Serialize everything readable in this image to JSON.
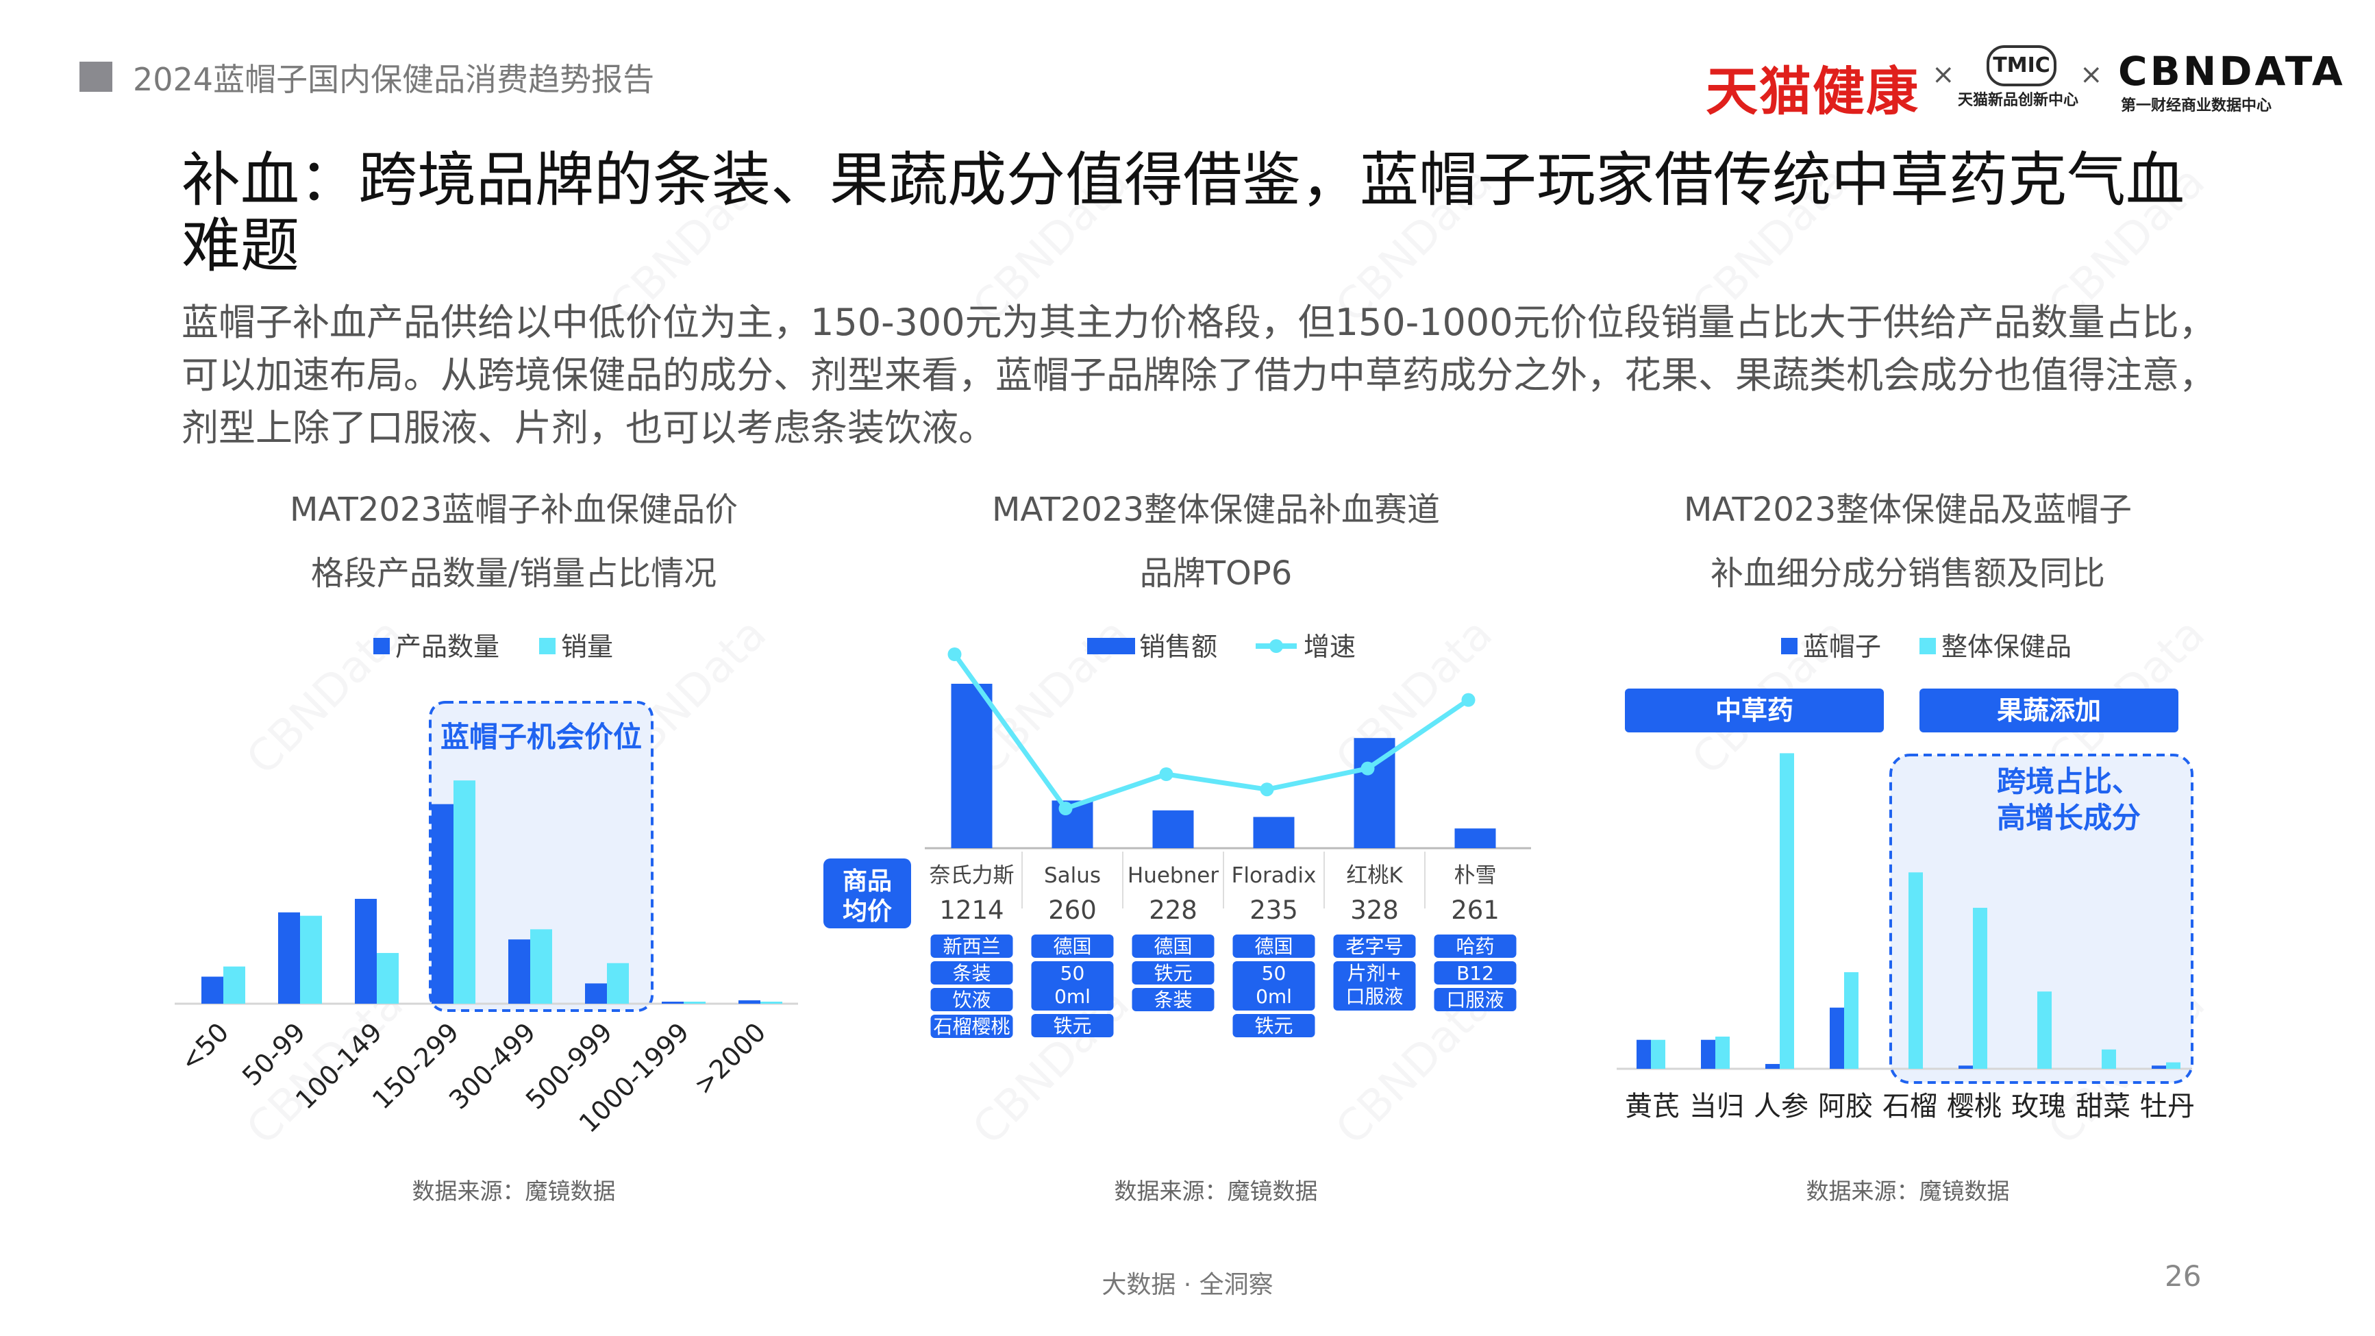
{
  "header": {
    "report_title": "2024蓝帽子国内保健品消费趋势报告",
    "logo_tmall": "天猫健康",
    "logo_tmic": "TMIC",
    "logo_tmic_sub": "天猫新品创新中心",
    "logo_cbn": "CBNDATA",
    "logo_cbn_sub": "第一财经商业数据中心",
    "separator": "×"
  },
  "title": "补血：跨境品牌的条装、果蔬成分值得借鉴，蓝帽子玩家借传统中草药克气血难题",
  "lead": "蓝帽子补血产品供给以中低价位为主，150-300元为其主力价格段，但150-1000元价位段销量占比大于供给产品数量占比，可以加速布局。从跨境保健品的成分、剂型来看，蓝帽子品牌除了借力中草药成分之外，花果、果蔬类机会成分也值得注意，剂型上除了口服液、片剂，也可以考虑条装饮液。",
  "watermark": "CBNData",
  "colors": {
    "dark_blue": "#1f63f0",
    "light_cyan": "#62e7fa",
    "box_bg": "#eaf1fd",
    "box_border": "#1f63f0"
  },
  "chart_data": [
    {
      "type": "bar",
      "title_line1": "MAT2023蓝帽子补血保健品价",
      "title_line2": "格段产品数量/销量占比情况",
      "categories": [
        "<50",
        "50-99",
        "100-149",
        "150-299",
        "300-499",
        "500-999",
        "1000-1999",
        ">2000"
      ],
      "series": [
        {
          "name": "产品数量",
          "color": "#1f63f0",
          "values": [
            0.08,
            0.27,
            0.31,
            0.59,
            0.19,
            0.06,
            0.005,
            0.01
          ]
        },
        {
          "name": "销量",
          "color": "#62e7fa",
          "values": [
            0.11,
            0.26,
            0.15,
            0.66,
            0.22,
            0.12,
            0.004,
            0.005
          ]
        }
      ],
      "ylim": [
        0,
        0.8
      ],
      "annotation": "蓝帽子机会价位",
      "highlight_categories": [
        "150-299",
        "300-499",
        "500-999"
      ],
      "source": "数据来源：魔镜数据",
      "legend_position": "top"
    },
    {
      "type": "bar+line",
      "title_line1": "MAT2023整体保健品补血赛道",
      "title_line2": "品牌TOP6",
      "categories": [
        "奈氏力斯",
        "Salus",
        "Huebner",
        "Floradix",
        "红桃K",
        "朴雪"
      ],
      "series": [
        {
          "name": "销售额",
          "kind": "bar",
          "color": "#1f63f0",
          "values": [
            100,
            29,
            23,
            19,
            67,
            12
          ]
        },
        {
          "name": "增速",
          "kind": "line",
          "color": "#62e7fa",
          "values": [
            100,
            19,
            37,
            29,
            40,
            76
          ]
        }
      ],
      "price_label": "商品均价",
      "prices": [
        "1214",
        "260",
        "228",
        "235",
        "328",
        "261"
      ],
      "tags": [
        [
          "新西兰",
          "条装",
          "饮液",
          "石榴樱桃"
        ],
        [
          "德国",
          "500ml",
          "铁元"
        ],
        [
          "德国",
          "铁元",
          "条装"
        ],
        [
          "德国",
          "500ml",
          "铁元"
        ],
        [
          "老字号",
          "片剂+口服液"
        ],
        [
          "哈药",
          "B12",
          "口服液"
        ]
      ],
      "source": "数据来源：魔镜数据",
      "legend_position": "top"
    },
    {
      "type": "bar",
      "title_line1": "MAT2023整体保健品及蓝帽子",
      "title_line2": "补血细分成分销售额及同比",
      "categories": [
        "黄芪",
        "当归",
        "人参",
        "阿胶",
        "石榴",
        "樱桃",
        "玫瑰",
        "甜菜",
        "牡丹"
      ],
      "series": [
        {
          "name": "蓝帽子",
          "color": "#1f63f0",
          "values": [
            0.09,
            0.09,
            0.015,
            0.19,
            0.0,
            0.01,
            0.0,
            0.0,
            0.01
          ]
        },
        {
          "name": "整体保健品",
          "color": "#62e7fa",
          "values": [
            0.09,
            0.1,
            0.98,
            0.3,
            0.61,
            0.5,
            0.24,
            0.06,
            0.02
          ]
        }
      ],
      "ylim": [
        0,
        1.0
      ],
      "group_labels": [
        {
          "label": "中草药"
        },
        {
          "label": "果蔬添加"
        }
      ],
      "annotation": "跨境占比、高增长成分",
      "annotation_line1": "跨境占比、",
      "annotation_line2": "高增长成分",
      "source": "数据来源：魔镜数据",
      "legend_position": "top"
    }
  ],
  "footer": {
    "tagline": "大数据 · 全洞察",
    "page_number": "26"
  }
}
